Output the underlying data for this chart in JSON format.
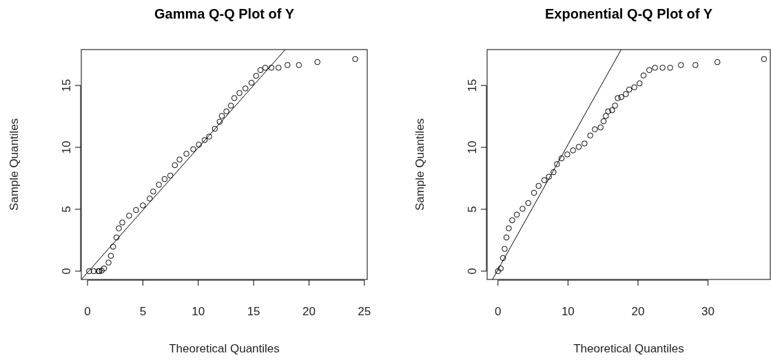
{
  "chart_data": [
    {
      "type": "scatter",
      "title": "Gamma Q-Q Plot of Y",
      "xlabel": "Theoretical Quantiles",
      "ylabel": "Sample Quantiles",
      "xlim": [
        -0.56,
        25.26
      ],
      "ylim": [
        -0.67,
        17.9
      ],
      "xticks": [
        0,
        5,
        10,
        15,
        20,
        25
      ],
      "yticks": [
        0,
        5,
        10,
        15
      ],
      "grid": false,
      "series": [
        {
          "marker": "circle",
          "color": "#000000",
          "x": [
            0.14,
            0.56,
            0.97,
            1.07,
            1.28,
            1.49,
            1.9,
            2.11,
            2.31,
            2.62,
            2.83,
            3.14,
            3.76,
            4.38,
            5.0,
            5.62,
            5.93,
            6.45,
            6.96,
            7.48,
            7.89,
            8.31,
            8.93,
            9.55,
            10.06,
            10.58,
            10.99,
            11.5,
            11.93,
            12.13,
            12.54,
            12.95,
            13.26,
            13.72,
            14.26,
            14.81,
            15.23,
            15.62,
            16.05,
            16.61,
            17.25,
            18.06,
            19.09,
            20.76,
            24.17
          ],
          "values": [
            0,
            0,
            0,
            0,
            0.04,
            0.22,
            0.69,
            1.24,
            1.98,
            2.72,
            3.46,
            3.93,
            4.48,
            4.94,
            5.31,
            5.87,
            6.43,
            6.98,
            7.44,
            7.72,
            8.56,
            9.02,
            9.48,
            9.85,
            10.22,
            10.59,
            10.87,
            11.5,
            12.07,
            12.54,
            12.91,
            13.37,
            13.98,
            14.39,
            14.76,
            15.22,
            15.78,
            16.24,
            16.43,
            16.43,
            16.43,
            16.65,
            16.65,
            16.89,
            17.13
          ]
        },
        {
          "type": "line",
          "color": "#000000",
          "x": [
            -0.56,
            17.86
          ],
          "values": [
            -0.67,
            17.9
          ]
        }
      ]
    },
    {
      "type": "scatter",
      "title": "Exponential Q-Q Plot of Y",
      "xlabel": "Theoretical Quantiles",
      "ylabel": "Sample Quantiles",
      "xlim": [
        -1.55,
        38.9
      ],
      "ylim": [
        -0.67,
        17.9
      ],
      "xticks": [
        0,
        10,
        20,
        30
      ],
      "yticks": [
        0,
        5,
        10,
        15
      ],
      "grid": false,
      "series": [
        {
          "marker": "circle",
          "color": "#000000",
          "x": [
            0,
            0.39,
            0.72,
            0.95,
            1.21,
            1.54,
            2.03,
            2.69,
            3.51,
            4.33,
            5.15,
            5.8,
            6.62,
            7.28,
            7.93,
            8.43,
            9.08,
            9.9,
            10.72,
            11.54,
            12.36,
            13.18,
            13.84,
            14.66,
            15.08,
            15.41,
            15.74,
            16.3,
            16.72,
            17.11,
            17.61,
            18.26,
            18.75,
            19.48,
            20.23,
            20.79,
            21.61,
            22.43,
            23.51,
            24.59,
            26.13,
            28.2,
            31.34,
            38.0
          ],
          "values": [
            0,
            0.22,
            1.06,
            1.8,
            2.72,
            3.46,
            4.11,
            4.57,
            5.04,
            5.5,
            6.33,
            6.89,
            7.35,
            7.63,
            8.0,
            8.65,
            9.11,
            9.43,
            9.76,
            10.04,
            10.31,
            10.96,
            11.46,
            11.61,
            12.11,
            12.54,
            12.91,
            13.0,
            13.37,
            13.98,
            14.06,
            14.3,
            14.67,
            14.85,
            15.17,
            15.81,
            16.24,
            16.43,
            16.43,
            16.43,
            16.65,
            16.65,
            16.89,
            17.13
          ]
        },
        {
          "type": "line",
          "color": "#000000",
          "x": [
            -0.79,
            17.6
          ],
          "values": [
            -0.67,
            17.9
          ]
        }
      ]
    }
  ]
}
